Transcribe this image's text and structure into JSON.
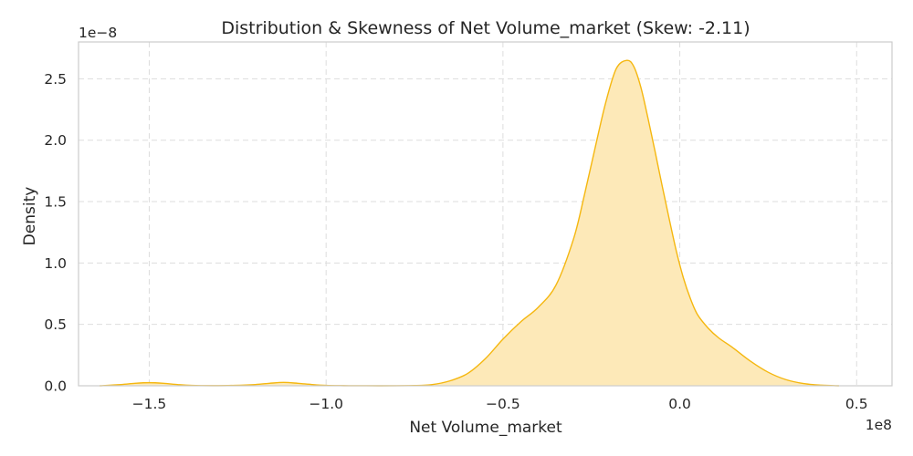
{
  "chart_data": {
    "type": "area",
    "title": "Distribution & Skewness of Net Volume_market (Skew: -2.11)",
    "xlabel": "Net Volume_market",
    "ylabel": "Density",
    "x_offset_label": "1e8",
    "y_offset_label": "1e−8",
    "x_ticks": [
      -1.5,
      -1.0,
      -0.5,
      0.0,
      0.5
    ],
    "x_tick_labels": [
      "−1.5",
      "−1.0",
      "−0.5",
      "0.0",
      "0.5"
    ],
    "y_ticks": [
      0,
      0.5,
      1.0,
      1.5,
      2.0,
      2.5
    ],
    "y_tick_labels": [
      "0.0",
      "0.5",
      "1.0",
      "1.5",
      "2.0",
      "2.5"
    ],
    "xlim": [
      -1.7,
      0.6
    ],
    "ylim": [
      0,
      2.8
    ],
    "grid": true,
    "grid_style": "dashed",
    "colors": {
      "line": "#f5b70f",
      "fill": "#fde9b8",
      "grid": "#dddddd",
      "frame": "#cccccc"
    },
    "series": [
      {
        "x": [
          -1.64,
          -1.58,
          -1.54,
          -1.5,
          -1.46,
          -1.42,
          -1.38,
          -1.32,
          -1.26,
          -1.2,
          -1.16,
          -1.12,
          -1.08,
          -1.04,
          -1.0,
          -0.95,
          -0.85,
          -0.75,
          -0.7,
          -0.65,
          -0.6,
          -0.55,
          -0.5,
          -0.45,
          -0.4,
          -0.35,
          -0.3,
          -0.27,
          -0.24,
          -0.21,
          -0.18,
          -0.15,
          -0.13,
          -0.11,
          -0.09,
          -0.07,
          -0.05,
          -0.03,
          -0.01,
          0.01,
          0.03,
          0.05,
          0.08,
          0.11,
          0.15,
          0.2,
          0.25,
          0.3,
          0.35,
          0.4,
          0.45
        ],
        "y": [
          0,
          0.01,
          0.02,
          0.025,
          0.02,
          0.01,
          0.003,
          0.001,
          0.003,
          0.01,
          0.02,
          0.027,
          0.02,
          0.01,
          0.003,
          0.001,
          0.0,
          0.002,
          0.01,
          0.04,
          0.1,
          0.22,
          0.38,
          0.52,
          0.64,
          0.82,
          1.2,
          1.55,
          1.93,
          2.3,
          2.58,
          2.65,
          2.6,
          2.43,
          2.18,
          1.91,
          1.63,
          1.36,
          1.1,
          0.88,
          0.71,
          0.58,
          0.47,
          0.39,
          0.31,
          0.2,
          0.11,
          0.05,
          0.018,
          0.005,
          0.0
        ]
      }
    ]
  }
}
